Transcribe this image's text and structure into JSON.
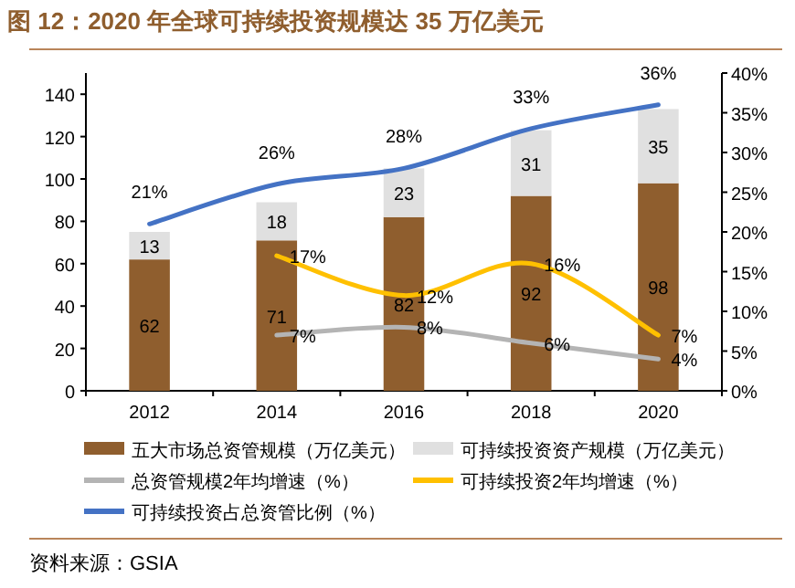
{
  "chart_data": {
    "type": "bar",
    "title": "图 12：2020 年全球可持续投资规模达 35 万亿美元",
    "categories": [
      "2012",
      "2014",
      "2016",
      "2018",
      "2020"
    ],
    "stacked": true,
    "series": [
      {
        "name": "五大市场总资管规模（万亿美元）",
        "color": "#8f5e2e",
        "values": [
          62,
          71,
          82,
          92,
          98
        ]
      },
      {
        "name": "可持续投资资产规模（万亿美元）",
        "color": "#e0e0e0",
        "values": [
          13,
          18,
          23,
          31,
          35
        ]
      },
      {
        "name": "总资管规模2年均增速（%）",
        "type": "line",
        "axis": "y2",
        "color": "#b4b4b4",
        "values": [
          null,
          7,
          8,
          6,
          4
        ],
        "value_labels": [
          null,
          "7%",
          "8%",
          "6%",
          "4%"
        ]
      },
      {
        "name": "可持续投资2年均增速（%）",
        "type": "line",
        "axis": "y2",
        "color": "#ffc000",
        "values": [
          null,
          17,
          12,
          16,
          7
        ],
        "value_labels": [
          null,
          "17%",
          "12%",
          "16%",
          "7%"
        ]
      },
      {
        "name": "可持续投资占总资管比例（%）",
        "type": "line",
        "axis": "y2",
        "color": "#4472c4",
        "values": [
          21,
          26,
          28,
          33,
          36
        ],
        "value_labels": [
          "21%",
          "26%",
          "28%",
          "33%",
          "36%"
        ]
      }
    ],
    "data_labels": true,
    "ylim": [
      0,
      150
    ],
    "yticks": [
      0,
      20,
      40,
      60,
      80,
      100,
      120,
      140
    ],
    "y2lim": [
      0,
      40
    ],
    "y2ticks": [
      {
        "value": 0,
        "label": "0%"
      },
      {
        "value": 5,
        "label": "5%"
      },
      {
        "value": 10,
        "label": "10%"
      },
      {
        "value": 15,
        "label": "15%"
      },
      {
        "value": 20,
        "label": "20%"
      },
      {
        "value": 25,
        "label": "25%"
      },
      {
        "value": 30,
        "label": "30%"
      },
      {
        "value": 35,
        "label": "35%"
      },
      {
        "value": 40,
        "label": "40%"
      }
    ],
    "grid": false,
    "legend": "bottom",
    "annotations": [
      "资料来源：GSIA"
    ]
  }
}
